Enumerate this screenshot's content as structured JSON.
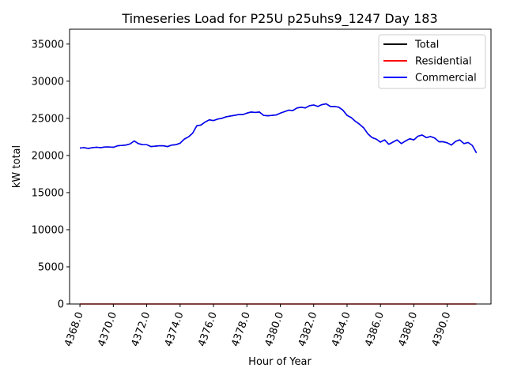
{
  "chart_data": {
    "type": "line",
    "title": "Timeseries Load for P25U p25uhs9_1247  Day 183",
    "xlabel": "Hour of Year",
    "ylabel": "kW total",
    "xlim": [
      4367.38,
      4392.62
    ],
    "ylim": [
      0,
      37000
    ],
    "xticks": [
      4368,
      4370,
      4372,
      4374,
      4376,
      4378,
      4380,
      4382,
      4384,
      4386,
      4388,
      4390
    ],
    "xtick_labels": [
      "4368.0",
      "4370.0",
      "4372.0",
      "4374.0",
      "4376.0",
      "4378.0",
      "4380.0",
      "4382.0",
      "4384.0",
      "4386.0",
      "4388.0",
      "4390.0"
    ],
    "yticks": [
      0,
      5000,
      10000,
      15000,
      20000,
      25000,
      30000,
      35000
    ],
    "ytick_labels": [
      "0",
      "5000",
      "10000",
      "15000",
      "20000",
      "25000",
      "30000",
      "35000"
    ],
    "legend_position": "top-right",
    "x": [
      4368.0,
      4368.25,
      4368.5,
      4368.75,
      4369.0,
      4369.25,
      4369.5,
      4369.75,
      4370.0,
      4370.25,
      4370.5,
      4370.75,
      4371.0,
      4371.25,
      4371.5,
      4371.75,
      4372.0,
      4372.25,
      4372.5,
      4372.75,
      4373.0,
      4373.25,
      4373.5,
      4373.75,
      4374.0,
      4374.25,
      4374.5,
      4374.75,
      4375.0,
      4375.25,
      4375.5,
      4375.75,
      4376.0,
      4376.25,
      4376.5,
      4376.75,
      4377.0,
      4377.25,
      4377.5,
      4377.75,
      4378.0,
      4378.25,
      4378.5,
      4378.75,
      4379.0,
      4379.25,
      4379.5,
      4379.75,
      4380.0,
      4380.25,
      4380.5,
      4380.75,
      4381.0,
      4381.25,
      4381.5,
      4381.75,
      4382.0,
      4382.25,
      4382.5,
      4382.75,
      4383.0,
      4383.25,
      4383.5,
      4383.75,
      4384.0,
      4384.25,
      4384.5,
      4384.75,
      4385.0,
      4385.25,
      4385.5,
      4385.75,
      4386.0,
      4386.25,
      4386.5,
      4386.75,
      4387.0,
      4387.25,
      4387.5,
      4387.75,
      4388.0,
      4388.25,
      4388.5,
      4388.75,
      4389.0,
      4389.25,
      4389.5,
      4389.75,
      4390.0,
      4390.25,
      4390.5,
      4390.75,
      4391.0,
      4391.25,
      4391.5,
      4391.75
    ],
    "series": [
      {
        "name": "Total",
        "color": "#000000",
        "values": [
          21000,
          21050,
          20950,
          21050,
          21100,
          21050,
          21150,
          21150,
          21100,
          21300,
          21350,
          21400,
          21550,
          21950,
          21600,
          21450,
          21450,
          21200,
          21250,
          21300,
          21300,
          21200,
          21400,
          21450,
          21650,
          22200,
          22500,
          23000,
          24000,
          24100,
          24500,
          24800,
          24700,
          24900,
          25000,
          25200,
          25300,
          25400,
          25500,
          25500,
          25700,
          25850,
          25800,
          25850,
          25400,
          25350,
          25400,
          25450,
          25700,
          25900,
          26100,
          26050,
          26400,
          26500,
          26400,
          26700,
          26800,
          26600,
          26850,
          26950,
          26600,
          26600,
          26500,
          26100,
          25400,
          25100,
          24600,
          24200,
          23700,
          22900,
          22400,
          22200,
          21800,
          22100,
          21500,
          21800,
          22100,
          21600,
          21950,
          22250,
          22100,
          22600,
          22750,
          22400,
          22550,
          22350,
          21850,
          21850,
          21700,
          21400,
          21900,
          22100,
          21600,
          21750,
          21350,
          20350
        ]
      },
      {
        "name": "Residential",
        "color": "#ff0000",
        "values": [
          0,
          0,
          0,
          0,
          0,
          0,
          0,
          0,
          0,
          0,
          0,
          0,
          0,
          0,
          0,
          0,
          0,
          0,
          0,
          0,
          0,
          0,
          0,
          0,
          0,
          0,
          0,
          0,
          0,
          0,
          0,
          0,
          0,
          0,
          0,
          0,
          0,
          0,
          0,
          0,
          0,
          0,
          0,
          0,
          0,
          0,
          0,
          0,
          0,
          0,
          0,
          0,
          0,
          0,
          0,
          0,
          0,
          0,
          0,
          0,
          0,
          0,
          0,
          0,
          0,
          0,
          0,
          0,
          0,
          0,
          0,
          0,
          0,
          0,
          0,
          0,
          0,
          0,
          0,
          0,
          0,
          0,
          0,
          0,
          0,
          0,
          0,
          0,
          0,
          0,
          0,
          0,
          0,
          0,
          0,
          0
        ]
      },
      {
        "name": "Commercial",
        "color": "#0000ff",
        "values": [
          21000,
          21050,
          20950,
          21050,
          21100,
          21050,
          21150,
          21150,
          21100,
          21300,
          21350,
          21400,
          21550,
          21950,
          21600,
          21450,
          21450,
          21200,
          21250,
          21300,
          21300,
          21200,
          21400,
          21450,
          21650,
          22200,
          22500,
          23000,
          24000,
          24100,
          24500,
          24800,
          24700,
          24900,
          25000,
          25200,
          25300,
          25400,
          25500,
          25500,
          25700,
          25850,
          25800,
          25850,
          25400,
          25350,
          25400,
          25450,
          25700,
          25900,
          26100,
          26050,
          26400,
          26500,
          26400,
          26700,
          26800,
          26600,
          26850,
          26950,
          26600,
          26600,
          26500,
          26100,
          25400,
          25100,
          24600,
          24200,
          23700,
          22900,
          22400,
          22200,
          21800,
          22100,
          21500,
          21800,
          22100,
          21600,
          21950,
          22250,
          22100,
          22600,
          22750,
          22400,
          22550,
          22350,
          21850,
          21850,
          21700,
          21400,
          21900,
          22100,
          21600,
          21750,
          21350,
          20350
        ]
      }
    ]
  }
}
